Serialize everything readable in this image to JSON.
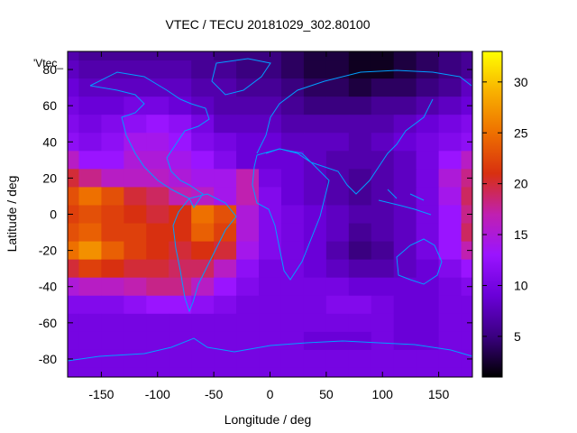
{
  "chart_data": {
    "type": "heatmap",
    "title": "VTEC / TECU 20181029_302.80100",
    "xlabel": "Longitude / deg",
    "ylabel": "Latitude / deg",
    "key_label": "'Vtec_",
    "xlim": [
      -180,
      180
    ],
    "ylim": [
      -90,
      90
    ],
    "x_ticks": [
      -150,
      -100,
      -50,
      0,
      50,
      100,
      150
    ],
    "y_ticks": [
      -80,
      -60,
      -40,
      -20,
      0,
      20,
      40,
      60,
      80
    ],
    "colorbar": {
      "range": [
        1,
        33
      ],
      "ticks": [
        5,
        10,
        15,
        20,
        25,
        30
      ],
      "palette": [
        "#000000",
        "#3a0080",
        "#6a00d8",
        "#9a14ff",
        "#c020b0",
        "#d83010",
        "#ee7000",
        "#f8b000",
        "#ffff00"
      ]
    },
    "coastline_color": "#00a0ff",
    "grid": false,
    "lon": [
      -180,
      -160,
      -140,
      -120,
      -100,
      -80,
      -60,
      -40,
      -20,
      0,
      20,
      40,
      60,
      80,
      100,
      120,
      140,
      160,
      180
    ],
    "lat": [
      90,
      80,
      70,
      60,
      50,
      40,
      30,
      20,
      10,
      0,
      -10,
      -20,
      -30,
      -40,
      -50,
      -60,
      -70,
      -80,
      -90
    ],
    "values": [
      [
        7,
        6,
        6,
        6,
        6,
        6,
        6,
        5,
        5,
        5,
        4,
        3,
        3,
        2,
        2,
        3,
        4,
        5,
        6
      ],
      [
        8,
        7,
        7,
        7,
        7,
        7,
        6,
        6,
        5,
        5,
        4,
        3,
        3,
        2,
        2,
        3,
        4,
        5,
        6
      ],
      [
        9,
        8,
        8,
        8,
        8,
        8,
        7,
        7,
        6,
        6,
        5,
        4,
        4,
        3,
        4,
        4,
        5,
        6,
        8
      ],
      [
        10,
        9,
        9,
        10,
        10,
        9,
        8,
        7,
        7,
        7,
        6,
        5,
        5,
        5,
        6,
        6,
        7,
        8,
        9
      ],
      [
        11,
        10,
        11,
        12,
        13,
        12,
        10,
        8,
        8,
        8,
        7,
        7,
        7,
        7,
        7,
        8,
        9,
        10,
        11
      ],
      [
        12,
        11,
        12,
        14,
        14,
        13,
        11,
        10,
        9,
        9,
        8,
        8,
        8,
        7,
        8,
        9,
        10,
        11,
        12
      ],
      [
        16,
        13,
        13,
        15,
        15,
        14,
        13,
        11,
        9,
        9,
        9,
        8,
        7,
        7,
        7,
        8,
        10,
        13,
        16
      ],
      [
        20,
        18,
        16,
        16,
        16,
        15,
        14,
        14,
        17,
        10,
        9,
        8,
        7,
        6,
        7,
        8,
        10,
        15,
        18
      ],
      [
        23,
        25,
        23,
        20,
        19,
        17,
        16,
        14,
        17,
        11,
        9,
        8,
        7,
        6,
        7,
        8,
        10,
        14,
        19
      ],
      [
        22,
        23,
        22,
        21,
        20,
        21,
        25,
        23,
        15,
        11,
        10,
        9,
        8,
        7,
        7,
        8,
        10,
        13,
        18
      ],
      [
        23,
        24,
        22,
        22,
        21,
        21,
        24,
        22,
        15,
        11,
        10,
        9,
        8,
        6,
        7,
        8,
        10,
        13,
        19
      ],
      [
        25,
        27,
        24,
        22,
        21,
        20,
        21,
        20,
        14,
        11,
        10,
        9,
        7,
        5,
        6,
        8,
        10,
        13,
        17
      ],
      [
        20,
        22,
        21,
        20,
        20,
        19,
        19,
        16,
        12,
        10,
        10,
        9,
        8,
        7,
        7,
        8,
        9,
        11,
        13
      ],
      [
        15,
        16,
        16,
        17,
        18,
        18,
        16,
        13,
        11,
        10,
        10,
        10,
        10,
        9,
        9,
        9,
        9,
        10,
        11
      ],
      [
        11,
        11,
        11,
        12,
        13,
        13,
        12,
        11,
        10,
        10,
        10,
        10,
        11,
        11,
        10,
        9,
        9,
        10,
        10
      ],
      [
        10,
        10,
        10,
        10,
        10,
        10,
        10,
        10,
        10,
        10,
        10,
        10,
        10,
        10,
        10,
        9,
        9,
        10,
        10
      ],
      [
        10,
        10,
        10,
        10,
        10,
        10,
        10,
        10,
        10,
        10,
        10,
        9,
        9,
        9,
        10,
        9,
        9,
        10,
        10
      ],
      [
        10,
        10,
        10,
        10,
        10,
        10,
        10,
        10,
        10,
        10,
        10,
        10,
        10,
        10,
        10,
        10,
        10,
        10,
        10
      ],
      [
        10,
        10,
        10,
        10,
        10,
        10,
        10,
        10,
        10,
        10,
        10,
        10,
        10,
        10,
        10,
        10,
        10,
        10,
        10
      ]
    ]
  }
}
